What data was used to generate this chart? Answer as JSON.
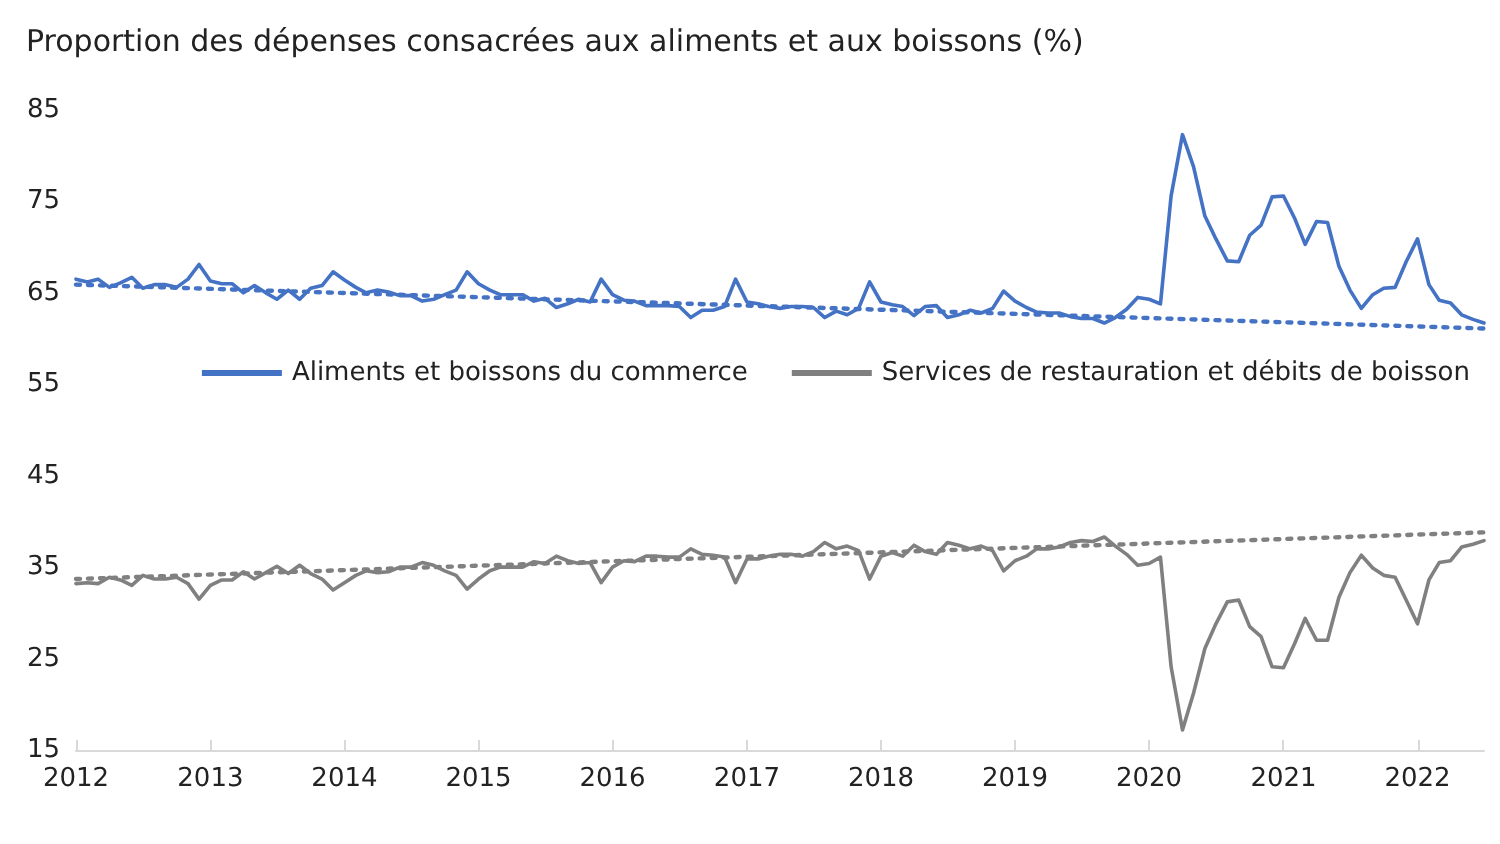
{
  "chart_data": {
    "type": "line",
    "title": "Proportion des dépenses consacrées aux aliments et aux boissons (%)",
    "x": [
      "2012-01",
      "2012-02",
      "2012-03",
      "2012-04",
      "2012-05",
      "2012-06",
      "2012-07",
      "2012-08",
      "2012-09",
      "2012-10",
      "2012-11",
      "2012-12",
      "2013-01",
      "2013-02",
      "2013-03",
      "2013-04",
      "2013-05",
      "2013-06",
      "2013-07",
      "2013-08",
      "2013-09",
      "2013-10",
      "2013-11",
      "2013-12",
      "2014-01",
      "2014-02",
      "2014-03",
      "2014-04",
      "2014-05",
      "2014-06",
      "2014-07",
      "2014-08",
      "2014-09",
      "2014-10",
      "2014-11",
      "2014-12",
      "2015-01",
      "2015-02",
      "2015-03",
      "2015-04",
      "2015-05",
      "2015-06",
      "2015-07",
      "2015-08",
      "2015-09",
      "2015-10",
      "2015-11",
      "2015-12",
      "2016-01",
      "2016-02",
      "2016-03",
      "2016-04",
      "2016-05",
      "2016-06",
      "2016-07",
      "2016-08",
      "2016-09",
      "2016-10",
      "2016-11",
      "2016-12",
      "2017-01",
      "2017-02",
      "2017-03",
      "2017-04",
      "2017-05",
      "2017-06",
      "2017-07",
      "2017-08",
      "2017-09",
      "2017-10",
      "2017-11",
      "2017-12",
      "2018-01",
      "2018-02",
      "2018-03",
      "2018-04",
      "2018-05",
      "2018-06",
      "2018-07",
      "2018-08",
      "2018-09",
      "2018-10",
      "2018-11",
      "2018-12",
      "2019-01",
      "2019-02",
      "2019-03",
      "2019-04",
      "2019-05",
      "2019-06",
      "2019-07",
      "2019-08",
      "2019-09",
      "2019-10",
      "2019-11",
      "2019-12",
      "2020-01",
      "2020-02",
      "2020-03",
      "2020-04",
      "2020-05",
      "2020-06",
      "2020-07",
      "2020-08",
      "2020-09",
      "2020-10",
      "2020-11",
      "2020-12",
      "2021-01",
      "2021-02",
      "2021-03",
      "2021-04",
      "2021-05",
      "2021-06",
      "2021-07",
      "2021-08",
      "2021-09",
      "2021-10",
      "2021-11",
      "2021-12",
      "2022-01",
      "2022-02",
      "2022-03",
      "2022-04",
      "2022-05",
      "2022-06",
      "2022-07"
    ],
    "series": [
      {
        "name": "Aliments et boissons du commerce",
        "color": "#4472c4",
        "values": [
          66.5,
          66.2,
          66.5,
          65.6,
          66.1,
          66.7,
          65.5,
          65.9,
          65.9,
          65.6,
          66.5,
          68.1,
          66.3,
          66.0,
          66.0,
          65.0,
          65.8,
          65.0,
          64.3,
          65.3,
          64.3,
          65.5,
          65.8,
          67.3,
          66.4,
          65.6,
          65.0,
          65.3,
          65.1,
          64.7,
          64.7,
          64.1,
          64.3,
          64.8,
          65.3,
          67.3,
          66.0,
          65.3,
          64.8,
          64.8,
          64.8,
          64.1,
          64.4,
          63.4,
          63.8,
          64.3,
          64.0,
          66.5,
          64.8,
          64.2,
          64.1,
          63.6,
          63.6,
          63.6,
          63.5,
          62.3,
          63.1,
          63.1,
          63.5,
          66.5,
          64.0,
          63.8,
          63.5,
          63.3,
          63.5,
          63.5,
          63.4,
          62.3,
          63.0,
          62.6,
          63.3,
          66.2,
          64.0,
          63.7,
          63.5,
          62.5,
          63.5,
          63.6,
          62.3,
          62.6,
          63.1,
          62.8,
          63.3,
          65.2,
          64.1,
          63.4,
          62.9,
          62.8,
          62.8,
          62.4,
          62.2,
          62.2,
          61.7,
          62.3,
          63.2,
          64.5,
          64.3,
          63.8,
          75.6,
          82.3,
          78.8,
          73.4,
          70.9,
          68.5,
          68.4,
          71.3,
          72.4,
          75.5,
          75.6,
          73.1,
          70.3,
          72.8,
          72.7,
          67.9,
          65.3,
          63.3,
          64.8,
          65.5,
          65.6,
          68.4,
          70.9,
          65.9,
          64.2,
          63.9,
          62.6,
          62.1,
          61.7
        ]
      },
      {
        "name": "Services de restauration et débits de boisson",
        "color": "#808080",
        "values": [
          33.2,
          33.3,
          33.2,
          33.9,
          33.6,
          33.0,
          34.1,
          33.7,
          33.7,
          33.9,
          33.2,
          31.5,
          33.0,
          33.6,
          33.6,
          34.5,
          33.7,
          34.4,
          35.1,
          34.3,
          35.2,
          34.3,
          33.7,
          32.5,
          33.3,
          34.1,
          34.6,
          34.4,
          34.5,
          35.0,
          35.0,
          35.5,
          35.2,
          34.6,
          34.1,
          32.6,
          33.7,
          34.6,
          35.0,
          35.0,
          35.0,
          35.6,
          35.4,
          36.2,
          35.7,
          35.4,
          35.5,
          33.3,
          35.0,
          35.7,
          35.6,
          36.2,
          36.2,
          36.1,
          36.1,
          37.0,
          36.4,
          36.3,
          36.1,
          33.3,
          35.9,
          35.9,
          36.2,
          36.4,
          36.4,
          36.2,
          36.7,
          37.7,
          37.0,
          37.3,
          36.8,
          33.7,
          36.2,
          36.6,
          36.2,
          37.4,
          36.7,
          36.4,
          37.7,
          37.4,
          37.0,
          37.3,
          36.8,
          34.6,
          35.7,
          36.2,
          37.0,
          37.0,
          37.2,
          37.7,
          37.9,
          37.8,
          38.3,
          37.3,
          36.4,
          35.2,
          35.4,
          36.1,
          24.1,
          17.2,
          21.2,
          26.1,
          28.8,
          31.2,
          31.4,
          28.5,
          27.4,
          24.1,
          24.0,
          26.7,
          29.4,
          27.0,
          27.0,
          31.7,
          34.4,
          36.3,
          34.9,
          34.1,
          33.9,
          31.4,
          28.8,
          33.6,
          35.5,
          35.7,
          37.2,
          37.5,
          37.9
        ]
      },
      {
        "type": "line",
        "x": [
          "2012-01",
          "2022-07"
        ],
        "values": [
          65.9,
          61.1
        ],
        "color": "#4472c4",
        "line_style": "dotted"
      },
      {
        "type": "line",
        "x": [
          "2012-01",
          "2022-07"
        ],
        "values": [
          33.7,
          38.8
        ],
        "color": "#808080",
        "line_style": "dotted"
      }
    ],
    "xlim": [
      "2012-01",
      "2022-07"
    ],
    "xticks": [
      {
        "value": "2012",
        "label": "2012"
      },
      {
        "value": "2013",
        "label": "2013"
      },
      {
        "value": "2014",
        "label": "2014"
      },
      {
        "value": "2015",
        "label": "2015"
      },
      {
        "value": "2016",
        "label": "2016"
      },
      {
        "value": "2017",
        "label": "2017"
      },
      {
        "value": "2018",
        "label": "2018"
      },
      {
        "value": "2019",
        "label": "2019"
      },
      {
        "value": "2020",
        "label": "2020"
      },
      {
        "value": "2021",
        "label": "2021"
      },
      {
        "value": "2022",
        "label": "2022"
      }
    ],
    "ylim": [
      15,
      85
    ],
    "yticks": [
      15,
      25,
      35,
      45,
      55,
      65,
      75,
      85
    ],
    "grid": false,
    "legend": "right",
    "marker": "none",
    "line_style": "solid"
  }
}
